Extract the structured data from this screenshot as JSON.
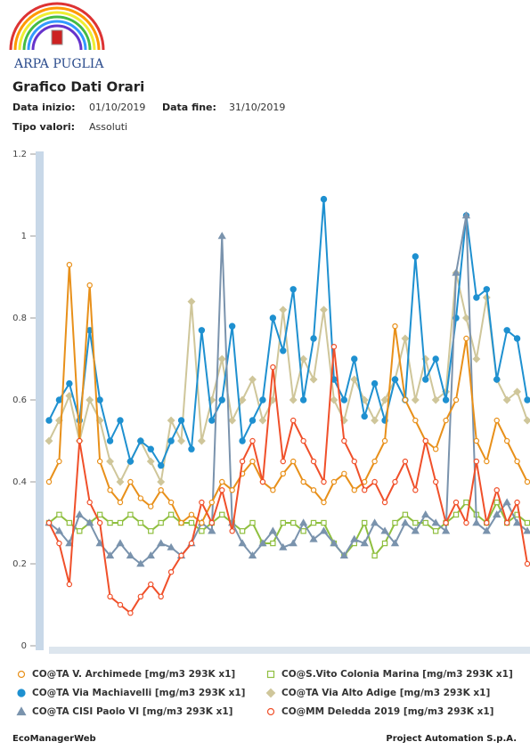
{
  "header": {
    "org": "ARPA PUGLIA",
    "title": "Grafico Dati Orari",
    "start_label": "Data inizio:",
    "start_value": "01/10/2019",
    "end_label": "Data fine:",
    "end_value": "31/10/2019",
    "kind_label": "Tipo valori:",
    "kind_value": "Assoluti"
  },
  "chart_data": {
    "type": "line",
    "ylim": [
      0,
      1.2
    ],
    "yticks": [
      0,
      0.2,
      0.4,
      0.6,
      0.8,
      1,
      1.2
    ],
    "series": [
      {
        "name": "CO@TA Via Alto Adige [mg/m3 293K x1]",
        "color": "#cfc69a",
        "marker": "diamond",
        "values": [
          0.5,
          0.55,
          0.61,
          0.5,
          0.6,
          0.55,
          0.45,
          0.4,
          0.45,
          0.5,
          0.45,
          0.4,
          0.55,
          0.5,
          0.84,
          0.5,
          0.6,
          0.7,
          0.55,
          0.6,
          0.65,
          0.55,
          0.6,
          0.82,
          0.6,
          0.7,
          0.65,
          0.82,
          0.6,
          0.55,
          0.65,
          0.6,
          0.55,
          0.6,
          0.65,
          0.75,
          0.6,
          0.7,
          0.6,
          0.62,
          0.91,
          0.8,
          0.7,
          0.85,
          0.65,
          0.6,
          0.62,
          0.55
        ]
      },
      {
        "name": "CO@S.Vito Colonia Marina [mg/m3 293K x1]",
        "color": "#8fbf3f",
        "marker": "square",
        "values": [
          0.3,
          0.32,
          0.3,
          0.28,
          0.3,
          0.32,
          0.3,
          0.3,
          0.32,
          0.3,
          0.28,
          0.3,
          0.32,
          0.3,
          0.3,
          0.28,
          0.3,
          0.32,
          0.3,
          0.28,
          0.3,
          0.25,
          0.25,
          0.3,
          0.3,
          0.28,
          0.3,
          0.3,
          0.25,
          0.22,
          0.25,
          0.3,
          0.22,
          0.25,
          0.3,
          0.32,
          0.3,
          0.3,
          0.28,
          0.3,
          0.32,
          0.35,
          0.32,
          0.3,
          0.35,
          0.3,
          0.32,
          0.3
        ]
      },
      {
        "name": "CO@TA Via Machiavelli [mg/m3 293K x1]",
        "color": "#1e90d0",
        "marker": "star",
        "values": [
          0.55,
          0.6,
          0.64,
          0.55,
          0.77,
          0.6,
          0.5,
          0.55,
          0.45,
          0.5,
          0.48,
          0.44,
          0.5,
          0.55,
          0.48,
          0.77,
          0.55,
          0.6,
          0.78,
          0.5,
          0.55,
          0.6,
          0.8,
          0.72,
          0.87,
          0.6,
          0.75,
          1.09,
          0.65,
          0.6,
          0.7,
          0.56,
          0.64,
          0.55,
          0.65,
          0.6,
          0.95,
          0.65,
          0.7,
          0.6,
          0.8,
          1.05,
          0.85,
          0.87,
          0.65,
          0.77,
          0.75,
          0.6
        ]
      },
      {
        "name": "CO@TA CISI Paolo VI [mg/m3 293K x1]",
        "color": "#7a93ad",
        "marker": "triangle",
        "values": [
          0.3,
          0.28,
          0.25,
          0.32,
          0.3,
          0.25,
          0.22,
          0.25,
          0.22,
          0.2,
          0.22,
          0.25,
          0.24,
          0.22,
          0.25,
          0.3,
          0.28,
          1.0,
          0.3,
          0.25,
          0.22,
          0.25,
          0.28,
          0.24,
          0.25,
          0.3,
          0.26,
          0.28,
          0.25,
          0.22,
          0.26,
          0.25,
          0.3,
          0.28,
          0.25,
          0.3,
          0.28,
          0.32,
          0.3,
          0.28,
          0.91,
          1.05,
          0.3,
          0.28,
          0.32,
          0.35,
          0.3,
          0.28
        ]
      },
      {
        "name": "CO@TA V. Archimede [mg/m3 293K x1]",
        "color": "#e8901a",
        "marker": "circle",
        "values": [
          0.4,
          0.45,
          0.93,
          0.5,
          0.88,
          0.45,
          0.38,
          0.35,
          0.4,
          0.36,
          0.34,
          0.38,
          0.35,
          0.3,
          0.32,
          0.3,
          0.35,
          0.4,
          0.38,
          0.42,
          0.45,
          0.4,
          0.38,
          0.42,
          0.45,
          0.4,
          0.38,
          0.35,
          0.4,
          0.42,
          0.38,
          0.4,
          0.45,
          0.5,
          0.78,
          0.6,
          0.55,
          0.5,
          0.48,
          0.55,
          0.6,
          0.75,
          0.5,
          0.45,
          0.55,
          0.5,
          0.45,
          0.4
        ]
      },
      {
        "name": "CO@MM Deledda 2019 [mg/m3 293K x1]",
        "color": "#f0502a",
        "marker": "circle",
        "values": [
          0.3,
          0.25,
          0.15,
          0.5,
          0.35,
          0.3,
          0.12,
          0.1,
          0.08,
          0.12,
          0.15,
          0.12,
          0.18,
          0.22,
          0.25,
          0.35,
          0.3,
          0.38,
          0.28,
          0.45,
          0.5,
          0.4,
          0.68,
          0.45,
          0.55,
          0.5,
          0.45,
          0.4,
          0.73,
          0.5,
          0.45,
          0.38,
          0.4,
          0.35,
          0.4,
          0.45,
          0.38,
          0.5,
          0.4,
          0.3,
          0.35,
          0.3,
          0.45,
          0.3,
          0.38,
          0.3,
          0.35,
          0.2
        ]
      }
    ]
  },
  "footer": {
    "left": "EcoManagerWeb",
    "right": "Project Automation S.p.A."
  }
}
